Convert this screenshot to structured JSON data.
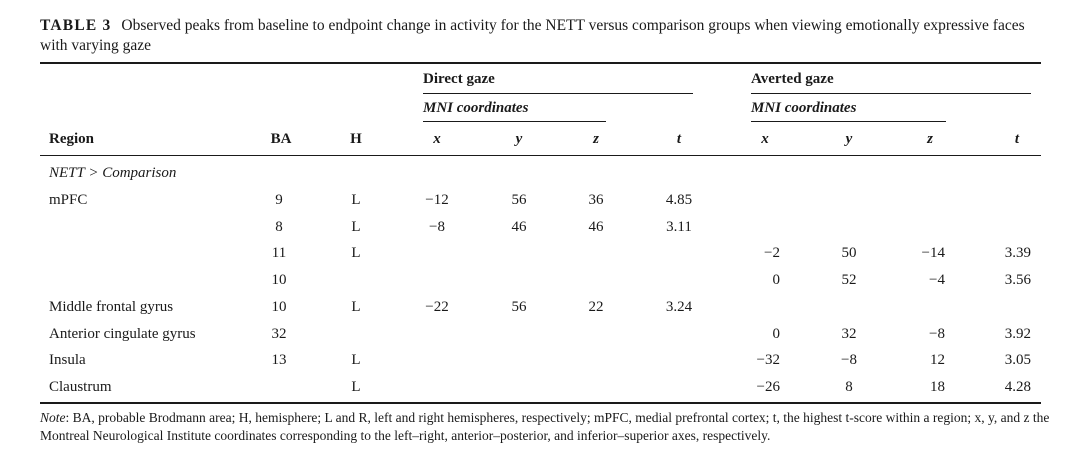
{
  "caption": {
    "label": "TABLE 3",
    "text": "Observed peaks from baseline to endpoint change in activity for the NETT versus comparison groups when viewing emotionally expressive faces with varying gaze"
  },
  "headers": {
    "group_direct": "Direct gaze",
    "group_averted": "Averted gaze",
    "mni_direct": "MNI coordinates",
    "mni_averted": "MNI coordinates",
    "region": "Region",
    "ba": "BA",
    "h": "H",
    "x": "x",
    "y": "y",
    "z": "z",
    "t": "t"
  },
  "section_label": "NETT > Comparison",
  "rows": [
    {
      "region": "mPFC",
      "ba": "9",
      "h": "L",
      "dx": "−12",
      "dy": "56",
      "dz": "36",
      "dt": "4.85",
      "ax": "",
      "ay": "",
      "az": "",
      "at": ""
    },
    {
      "region": "",
      "ba": "8",
      "h": "L",
      "dx": "−8",
      "dy": "46",
      "dz": "46",
      "dt": "3.11",
      "ax": "",
      "ay": "",
      "az": "",
      "at": ""
    },
    {
      "region": "",
      "ba": "11",
      "h": "L",
      "dx": "",
      "dy": "",
      "dz": "",
      "dt": "",
      "ax": "−2",
      "ay": "50",
      "az": "−14",
      "at": "3.39"
    },
    {
      "region": "",
      "ba": "10",
      "h": "",
      "dx": "",
      "dy": "",
      "dz": "",
      "dt": "",
      "ax": "0",
      "ay": "52",
      "az": "−4",
      "at": "3.56"
    },
    {
      "region": "Middle frontal gyrus",
      "ba": "10",
      "h": "L",
      "dx": "−22",
      "dy": "56",
      "dz": "22",
      "dt": "3.24",
      "ax": "",
      "ay": "",
      "az": "",
      "at": ""
    },
    {
      "region": "Anterior cingulate gyrus",
      "ba": "32",
      "h": "",
      "dx": "",
      "dy": "",
      "dz": "",
      "dt": "",
      "ax": "0",
      "ay": "32",
      "az": "−8",
      "at": "3.92"
    },
    {
      "region": "Insula",
      "ba": "13",
      "h": "L",
      "dx": "",
      "dy": "",
      "dz": "",
      "dt": "",
      "ax": "−32",
      "ay": "−8",
      "az": "12",
      "at": "3.05"
    },
    {
      "region": "Claustrum",
      "ba": "",
      "h": "L",
      "dx": "",
      "dy": "",
      "dz": "",
      "dt": "",
      "ax": "−26",
      "ay": "8",
      "az": "18",
      "at": "4.28"
    }
  ],
  "note": {
    "label": "Note",
    "text": ": BA, probable Brodmann area; H, hemisphere; L and R, left and right hemispheres, respectively; mPFC, medial prefrontal cortex; t, the highest t-score within a region; x, y, and z the Montreal Neurological Institute coordinates corresponding to the left–right, anterior–posterior, and inferior–superior axes, respectively."
  }
}
